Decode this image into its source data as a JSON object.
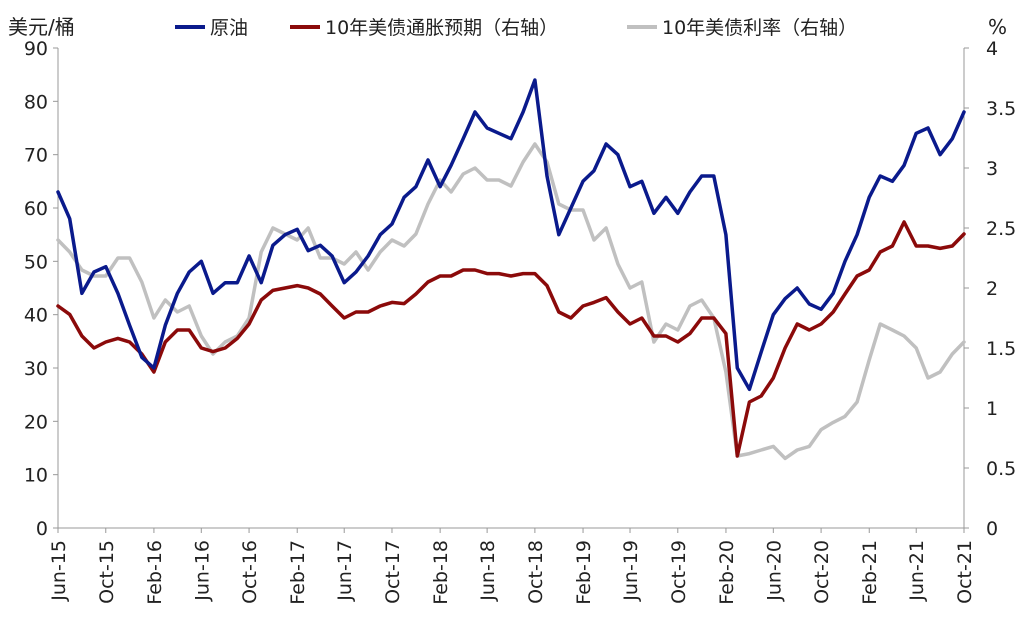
{
  "chart_data": {
    "type": "line",
    "left_axis_unit": "美元/桶",
    "right_axis_unit": "%",
    "y_left": {
      "min": 0,
      "max": 90,
      "ticks": [
        "0",
        "10",
        "20",
        "30",
        "40",
        "50",
        "60",
        "70",
        "80",
        "90"
      ]
    },
    "y_right": {
      "min": 0,
      "max": 4,
      "ticks": [
        "0",
        "0.5",
        "1",
        "1.5",
        "2",
        "2.5",
        "3",
        "3.5",
        "4"
      ]
    },
    "x_range": [
      "2015-06",
      "2021-10"
    ],
    "x_ticks": [
      "Jun-15",
      "Oct-15",
      "Feb-16",
      "Jun-16",
      "Oct-16",
      "Feb-17",
      "Jun-17",
      "Oct-17",
      "Feb-18",
      "Jun-18",
      "Oct-18",
      "Feb-19",
      "Jun-19",
      "Oct-19",
      "Feb-20",
      "Jun-20",
      "Oct-20",
      "Feb-21",
      "Jun-21",
      "Oct-21"
    ],
    "x_tick_dates": [
      "2015-06",
      "2015-10",
      "2016-02",
      "2016-06",
      "2016-10",
      "2017-02",
      "2017-06",
      "2017-10",
      "2018-02",
      "2018-06",
      "2018-10",
      "2019-02",
      "2019-06",
      "2019-10",
      "2020-02",
      "2020-06",
      "2020-10",
      "2021-02",
      "2021-06",
      "2021-10"
    ],
    "legend_position": "top",
    "series": [
      {
        "name": "原油",
        "axis": "left",
        "color": "#0a1a8c",
        "points": [
          [
            "2015-06-01",
            63
          ],
          [
            "2015-07-01",
            58
          ],
          [
            "2015-08-01",
            44
          ],
          [
            "2015-09-01",
            48
          ],
          [
            "2015-10-01",
            49
          ],
          [
            "2015-11-01",
            44
          ],
          [
            "2015-12-01",
            38
          ],
          [
            "2016-01-01",
            32
          ],
          [
            "2016-02-01",
            30
          ],
          [
            "2016-03-01",
            38
          ],
          [
            "2016-04-01",
            44
          ],
          [
            "2016-05-01",
            48
          ],
          [
            "2016-06-01",
            50
          ],
          [
            "2016-07-01",
            44
          ],
          [
            "2016-08-01",
            46
          ],
          [
            "2016-09-01",
            46
          ],
          [
            "2016-10-01",
            51
          ],
          [
            "2016-11-01",
            46
          ],
          [
            "2016-12-01",
            53
          ],
          [
            "2017-01-01",
            55
          ],
          [
            "2017-02-01",
            56
          ],
          [
            "2017-03-01",
            52
          ],
          [
            "2017-04-01",
            53
          ],
          [
            "2017-05-01",
            51
          ],
          [
            "2017-06-01",
            46
          ],
          [
            "2017-07-01",
            48
          ],
          [
            "2017-08-01",
            51
          ],
          [
            "2017-09-01",
            55
          ],
          [
            "2017-10-01",
            57
          ],
          [
            "2017-11-01",
            62
          ],
          [
            "2017-12-01",
            64
          ],
          [
            "2018-01-01",
            69
          ],
          [
            "2018-02-01",
            64
          ],
          [
            "2018-03-01",
            68
          ],
          [
            "2018-04-01",
            73
          ],
          [
            "2018-05-01",
            78
          ],
          [
            "2018-06-01",
            75
          ],
          [
            "2018-07-01",
            74
          ],
          [
            "2018-08-01",
            73
          ],
          [
            "2018-09-01",
            78
          ],
          [
            "2018-10-01",
            84
          ],
          [
            "2018-11-01",
            66
          ],
          [
            "2018-12-01",
            55
          ],
          [
            "2019-01-01",
            60
          ],
          [
            "2019-02-01",
            65
          ],
          [
            "2019-03-01",
            67
          ],
          [
            "2019-04-01",
            72
          ],
          [
            "2019-05-01",
            70
          ],
          [
            "2019-06-01",
            64
          ],
          [
            "2019-07-01",
            65
          ],
          [
            "2019-08-01",
            59
          ],
          [
            "2019-09-01",
            62
          ],
          [
            "2019-10-01",
            59
          ],
          [
            "2019-11-01",
            63
          ],
          [
            "2019-12-01",
            66
          ],
          [
            "2020-01-01",
            66
          ],
          [
            "2020-02-01",
            55
          ],
          [
            "2020-03-01",
            30
          ],
          [
            "2020-04-01",
            26
          ],
          [
            "2020-05-01",
            33
          ],
          [
            "2020-06-01",
            40
          ],
          [
            "2020-07-01",
            43
          ],
          [
            "2020-08-01",
            45
          ],
          [
            "2020-09-01",
            42
          ],
          [
            "2020-10-01",
            41
          ],
          [
            "2020-11-01",
            44
          ],
          [
            "2020-12-01",
            50
          ],
          [
            "2021-01-01",
            55
          ],
          [
            "2021-02-01",
            62
          ],
          [
            "2021-03-01",
            66
          ],
          [
            "2021-04-01",
            65
          ],
          [
            "2021-05-01",
            68
          ],
          [
            "2021-06-01",
            74
          ],
          [
            "2021-07-01",
            75
          ],
          [
            "2021-08-01",
            70
          ],
          [
            "2021-09-01",
            73
          ],
          [
            "2021-10-01",
            78
          ]
        ]
      },
      {
        "name": "10年美债通胀预期（右轴）",
        "axis": "right",
        "color": "#8b0a0a",
        "points": [
          [
            "2015-06-01",
            1.85
          ],
          [
            "2015-07-01",
            1.78
          ],
          [
            "2015-08-01",
            1.6
          ],
          [
            "2015-09-01",
            1.5
          ],
          [
            "2015-10-01",
            1.55
          ],
          [
            "2015-11-01",
            1.58
          ],
          [
            "2015-12-01",
            1.55
          ],
          [
            "2016-01-01",
            1.45
          ],
          [
            "2016-02-01",
            1.3
          ],
          [
            "2016-03-01",
            1.55
          ],
          [
            "2016-04-01",
            1.65
          ],
          [
            "2016-05-01",
            1.65
          ],
          [
            "2016-06-01",
            1.5
          ],
          [
            "2016-07-01",
            1.47
          ],
          [
            "2016-08-01",
            1.5
          ],
          [
            "2016-09-01",
            1.58
          ],
          [
            "2016-10-01",
            1.7
          ],
          [
            "2016-11-01",
            1.9
          ],
          [
            "2016-12-01",
            1.98
          ],
          [
            "2017-01-01",
            2.0
          ],
          [
            "2017-02-01",
            2.02
          ],
          [
            "2017-03-01",
            2.0
          ],
          [
            "2017-04-01",
            1.95
          ],
          [
            "2017-05-01",
            1.85
          ],
          [
            "2017-06-01",
            1.75
          ],
          [
            "2017-07-01",
            1.8
          ],
          [
            "2017-08-01",
            1.8
          ],
          [
            "2017-09-01",
            1.85
          ],
          [
            "2017-10-01",
            1.88
          ],
          [
            "2017-11-01",
            1.87
          ],
          [
            "2017-12-01",
            1.95
          ],
          [
            "2018-01-01",
            2.05
          ],
          [
            "2018-02-01",
            2.1
          ],
          [
            "2018-03-01",
            2.1
          ],
          [
            "2018-04-01",
            2.15
          ],
          [
            "2018-05-01",
            2.15
          ],
          [
            "2018-06-01",
            2.12
          ],
          [
            "2018-07-01",
            2.12
          ],
          [
            "2018-08-01",
            2.1
          ],
          [
            "2018-09-01",
            2.12
          ],
          [
            "2018-10-01",
            2.12
          ],
          [
            "2018-11-01",
            2.02
          ],
          [
            "2018-12-01",
            1.8
          ],
          [
            "2019-01-01",
            1.75
          ],
          [
            "2019-02-01",
            1.85
          ],
          [
            "2019-03-01",
            1.88
          ],
          [
            "2019-04-01",
            1.92
          ],
          [
            "2019-05-01",
            1.8
          ],
          [
            "2019-06-01",
            1.7
          ],
          [
            "2019-07-01",
            1.75
          ],
          [
            "2019-08-01",
            1.6
          ],
          [
            "2019-09-01",
            1.6
          ],
          [
            "2019-10-01",
            1.55
          ],
          [
            "2019-11-01",
            1.62
          ],
          [
            "2019-12-01",
            1.75
          ],
          [
            "2020-01-01",
            1.75
          ],
          [
            "2020-02-01",
            1.62
          ],
          [
            "2020-03-01",
            0.6
          ],
          [
            "2020-04-01",
            1.05
          ],
          [
            "2020-05-01",
            1.1
          ],
          [
            "2020-06-01",
            1.25
          ],
          [
            "2020-07-01",
            1.5
          ],
          [
            "2020-08-01",
            1.7
          ],
          [
            "2020-09-01",
            1.65
          ],
          [
            "2020-10-01",
            1.7
          ],
          [
            "2020-11-01",
            1.8
          ],
          [
            "2020-12-01",
            1.95
          ],
          [
            "2021-01-01",
            2.1
          ],
          [
            "2021-02-01",
            2.15
          ],
          [
            "2021-03-01",
            2.3
          ],
          [
            "2021-04-01",
            2.35
          ],
          [
            "2021-05-01",
            2.55
          ],
          [
            "2021-06-01",
            2.35
          ],
          [
            "2021-07-01",
            2.35
          ],
          [
            "2021-08-01",
            2.33
          ],
          [
            "2021-09-01",
            2.35
          ],
          [
            "2021-10-01",
            2.45
          ]
        ]
      },
      {
        "name": "10年美债利率（右轴）",
        "axis": "right",
        "color": "#c0c0c0",
        "points": [
          [
            "2015-06-01",
            2.4
          ],
          [
            "2015-07-01",
            2.3
          ],
          [
            "2015-08-01",
            2.15
          ],
          [
            "2015-09-01",
            2.1
          ],
          [
            "2015-10-01",
            2.1
          ],
          [
            "2015-11-01",
            2.25
          ],
          [
            "2015-12-01",
            2.25
          ],
          [
            "2016-01-01",
            2.05
          ],
          [
            "2016-02-01",
            1.75
          ],
          [
            "2016-03-01",
            1.9
          ],
          [
            "2016-04-01",
            1.8
          ],
          [
            "2016-05-01",
            1.85
          ],
          [
            "2016-06-01",
            1.6
          ],
          [
            "2016-07-01",
            1.45
          ],
          [
            "2016-08-01",
            1.55
          ],
          [
            "2016-09-01",
            1.6
          ],
          [
            "2016-10-01",
            1.75
          ],
          [
            "2016-11-01",
            2.3
          ],
          [
            "2016-12-01",
            2.5
          ],
          [
            "2017-01-01",
            2.45
          ],
          [
            "2017-02-01",
            2.4
          ],
          [
            "2017-03-01",
            2.5
          ],
          [
            "2017-04-01",
            2.25
          ],
          [
            "2017-05-01",
            2.25
          ],
          [
            "2017-06-01",
            2.2
          ],
          [
            "2017-07-01",
            2.3
          ],
          [
            "2017-08-01",
            2.15
          ],
          [
            "2017-09-01",
            2.3
          ],
          [
            "2017-10-01",
            2.4
          ],
          [
            "2017-11-01",
            2.35
          ],
          [
            "2017-12-01",
            2.45
          ],
          [
            "2018-01-01",
            2.7
          ],
          [
            "2018-02-01",
            2.9
          ],
          [
            "2018-03-01",
            2.8
          ],
          [
            "2018-04-01",
            2.95
          ],
          [
            "2018-05-01",
            3.0
          ],
          [
            "2018-06-01",
            2.9
          ],
          [
            "2018-07-01",
            2.9
          ],
          [
            "2018-08-01",
            2.85
          ],
          [
            "2018-09-01",
            3.05
          ],
          [
            "2018-10-01",
            3.2
          ],
          [
            "2018-11-01",
            3.05
          ],
          [
            "2018-12-01",
            2.7
          ],
          [
            "2019-01-01",
            2.65
          ],
          [
            "2019-02-01",
            2.65
          ],
          [
            "2019-03-01",
            2.4
          ],
          [
            "2019-04-01",
            2.5
          ],
          [
            "2019-05-01",
            2.2
          ],
          [
            "2019-06-01",
            2.0
          ],
          [
            "2019-07-01",
            2.05
          ],
          [
            "2019-08-01",
            1.55
          ],
          [
            "2019-09-01",
            1.7
          ],
          [
            "2019-10-01",
            1.65
          ],
          [
            "2019-11-01",
            1.85
          ],
          [
            "2019-12-01",
            1.9
          ],
          [
            "2020-01-01",
            1.75
          ],
          [
            "2020-02-01",
            1.3
          ],
          [
            "2020-03-01",
            0.6
          ],
          [
            "2020-04-01",
            0.62
          ],
          [
            "2020-05-01",
            0.65
          ],
          [
            "2020-06-01",
            0.68
          ],
          [
            "2020-07-01",
            0.58
          ],
          [
            "2020-08-01",
            0.65
          ],
          [
            "2020-09-01",
            0.68
          ],
          [
            "2020-10-01",
            0.82
          ],
          [
            "2020-11-01",
            0.88
          ],
          [
            "2020-12-01",
            0.93
          ],
          [
            "2021-01-01",
            1.05
          ],
          [
            "2021-02-01",
            1.4
          ],
          [
            "2021-03-01",
            1.7
          ],
          [
            "2021-04-01",
            1.65
          ],
          [
            "2021-05-01",
            1.6
          ],
          [
            "2021-06-01",
            1.5
          ],
          [
            "2021-07-01",
            1.25
          ],
          [
            "2021-08-01",
            1.3
          ],
          [
            "2021-09-01",
            1.45
          ],
          [
            "2021-10-01",
            1.55
          ]
        ]
      }
    ]
  }
}
